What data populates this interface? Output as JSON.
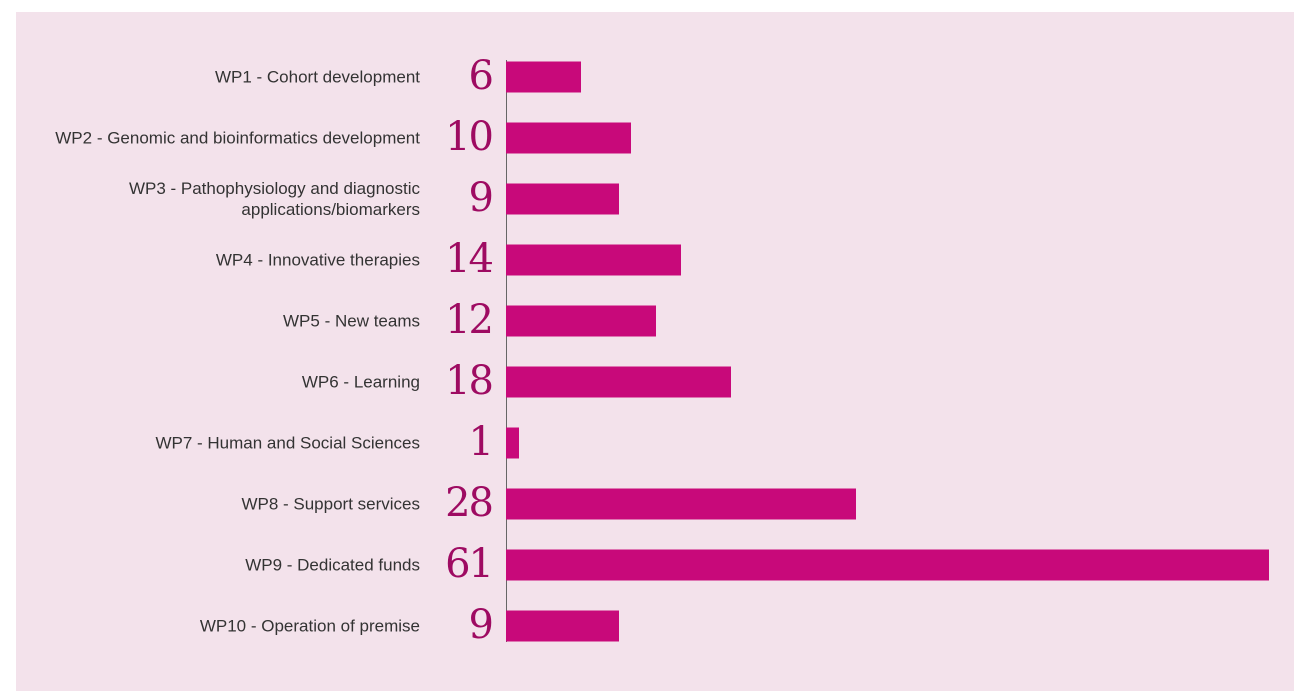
{
  "chart_data": {
    "type": "bar",
    "orientation": "horizontal",
    "categories": [
      "WP1 - Cohort development",
      "WP2 - Genomic and bioinformatics development",
      "WP3 - Pathophysiology and diagnostic applications/biomarkers",
      "WP4 - Innovative therapies",
      "WP5 - New teams",
      "WP6 - Learning",
      "WP7 - Human and Social Sciences",
      "WP8 - Support services",
      "WP9 - Dedicated funds",
      "WP10 - Operation of premise"
    ],
    "values": [
      6,
      10,
      9,
      14,
      12,
      18,
      1,
      28,
      61,
      9
    ],
    "color": "#c8097a"
  }
}
